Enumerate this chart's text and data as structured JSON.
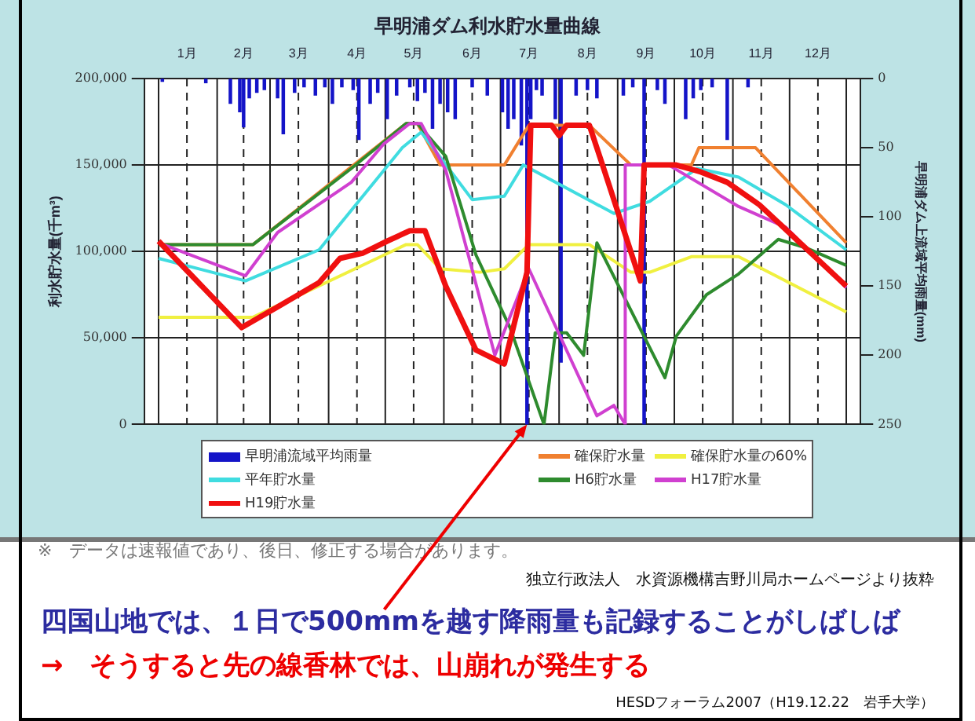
{
  "chart_data": {
    "type": "line",
    "title": "早明浦ダム利水貯水量曲線",
    "ylabel": "利水貯水量(千m³)",
    "y2label": "早明浦ダム上流域平均雨量(mm)",
    "xlim": [
      "--01-01",
      "--12-31"
    ],
    "xticks": [
      {
        "value": "--01-01",
        "label": null
      },
      {
        "value": "--01-16",
        "label": "1月"
      },
      {
        "value": "--02-01",
        "label": null
      },
      {
        "value": "--02-15",
        "label": "2月"
      },
      {
        "value": "--03-01",
        "label": null
      },
      {
        "value": "--03-16",
        "label": "3月"
      },
      {
        "value": "--04-01",
        "label": null
      },
      {
        "value": "--04-16",
        "label": "4月"
      },
      {
        "value": "--05-01",
        "label": null
      },
      {
        "value": "--05-16",
        "label": "5月"
      },
      {
        "value": "--06-01",
        "label": null
      },
      {
        "value": "--06-16",
        "label": "6月"
      },
      {
        "value": "--07-01",
        "label": null
      },
      {
        "value": "--07-16",
        "label": "7月"
      },
      {
        "value": "--08-01",
        "label": null
      },
      {
        "value": "--08-16",
        "label": "8月"
      },
      {
        "value": "--09-01",
        "label": null
      },
      {
        "value": "--09-16",
        "label": "9月"
      },
      {
        "value": "--10-01",
        "label": null
      },
      {
        "value": "--10-16",
        "label": "10月"
      },
      {
        "value": "--11-01",
        "label": null
      },
      {
        "value": "--11-16",
        "label": "11月"
      },
      {
        "value": "--12-01",
        "label": null
      },
      {
        "value": "--12-16",
        "label": "12月"
      },
      {
        "value": "--12-31",
        "label": null
      }
    ],
    "ylim": [
      0,
      200000
    ],
    "yticks": [
      0,
      {
        "value": 50000,
        "label": "50,000"
      },
      {
        "value": 100000,
        "label": "100,000"
      },
      {
        "value": 150000,
        "label": "150,000"
      },
      {
        "value": 200000,
        "label": "200,000"
      }
    ],
    "y2lim": [
      250,
      0
    ],
    "y2ticks": [
      0,
      50,
      100,
      150,
      200,
      250
    ],
    "grid": true,
    "legend": "bottom",
    "marker": "none",
    "line_style": "solid",
    "series": [
      {
        "name": "早明浦流域平均雨量",
        "type": "bar",
        "axis": "y2",
        "color": "#1414c8",
        "x": [
          "--01-03",
          "--01-26",
          "--02-08",
          "--02-13",
          "--02-15",
          "--02-18",
          "--02-22",
          "--02-26",
          "--03-05",
          "--03-08",
          "--03-14",
          "--03-19",
          "--03-25",
          "--03-30",
          "--04-03",
          "--04-08",
          "--04-14",
          "--04-17",
          "--04-23",
          "--04-27",
          "--05-02",
          "--05-07",
          "--05-14",
          "--05-18",
          "--05-22",
          "--05-26",
          "--05-30",
          "--06-03",
          "--06-07",
          "--06-16",
          "--06-24",
          "--07-02",
          "--07-05",
          "--07-08",
          "--07-12",
          "--07-15",
          "--07-17",
          "--07-20",
          "--07-23",
          "--07-30",
          "--08-02",
          "--08-10",
          "--08-16",
          "--08-21",
          "--09-04",
          "--09-09",
          "--09-15",
          "--09-22",
          "--09-26",
          "--10-07",
          "--10-11",
          "--10-15",
          "--10-21",
          "--10-29",
          "--11-09"
        ],
        "values": [
          2,
          3,
          18,
          24,
          35,
          14,
          10,
          8,
          14,
          40,
          10,
          6,
          12,
          6,
          18,
          6,
          8,
          44,
          18,
          10,
          29,
          12,
          6,
          16,
          10,
          36,
          18,
          24,
          29,
          6,
          12,
          24,
          36,
          29,
          48,
          250,
          29,
          8,
          12,
          29,
          205,
          12,
          8,
          14,
          12,
          6,
          250,
          8,
          18,
          29,
          14,
          8,
          6,
          44,
          6
        ]
      },
      {
        "name": "確保貯水量",
        "color": "#f08030",
        "x": [
          "--01-01",
          "--02-20",
          "--05-12",
          "--05-18",
          "--05-30",
          "--07-03",
          "--07-16",
          "--08-17",
          "--09-08",
          "--10-10",
          "--10-14",
          "--11-13",
          "--12-31"
        ],
        "values": [
          104000,
          104000,
          174000,
          174000,
          150000,
          150000,
          173000,
          173000,
          150000,
          150000,
          160000,
          160000,
          105000
        ]
      },
      {
        "name": "確保貯水量の60%",
        "color": "#f0f040",
        "x": [
          "--01-01",
          "--02-20",
          "--05-12",
          "--05-18",
          "--05-30",
          "--06-20",
          "--07-03",
          "--07-16",
          "--08-17",
          "--09-08",
          "--09-18",
          "--10-10",
          "--10-14",
          "--11-04",
          "--12-31"
        ],
        "values": [
          62000,
          62000,
          104000,
          104000,
          90000,
          88000,
          90000,
          104000,
          104000,
          88000,
          88000,
          97000,
          97000,
          97000,
          65000
        ]
      },
      {
        "name": "平年貯水量",
        "color": "#40dce0",
        "x": [
          "--01-01",
          "--02-16",
          "--03-27",
          "--05-10",
          "--05-20",
          "--06-16",
          "--07-03",
          "--07-13",
          "--08-30",
          "--09-18",
          "--10-13",
          "--11-04",
          "--11-29",
          "--12-31"
        ],
        "values": [
          96000,
          83000,
          101000,
          160000,
          169000,
          130000,
          132000,
          150000,
          122000,
          129000,
          148000,
          143000,
          127000,
          101000
        ]
      },
      {
        "name": "H6貯水量",
        "color": "#2e8b2e",
        "x": [
          "--01-01",
          "--02-20",
          "--04-13",
          "--05-12",
          "--05-18",
          "--06-02",
          "--06-18",
          "--07-06",
          "--07-24",
          "--07-30",
          "--08-05",
          "--08-14",
          "--08-21",
          "--09-26",
          "--10-02",
          "--10-18",
          "--11-04",
          "--11-25",
          "--12-10",
          "--12-31"
        ],
        "values": [
          104000,
          104000,
          148000,
          174000,
          174000,
          155000,
          98000,
          56000,
          0,
          53000,
          53000,
          40000,
          105000,
          27000,
          51000,
          75000,
          87000,
          107000,
          102000,
          92000
        ]
      },
      {
        "name": "H17貯水量",
        "color": "#d040d0",
        "x": [
          "--01-01",
          "--02-16",
          "--03-05",
          "--04-13",
          "--04-30",
          "--05-14",
          "--05-20",
          "--06-02",
          "--06-28",
          "--07-16",
          "--08-21",
          "--08-30",
          "--09-05",
          "--09-05",
          "--09-28",
          "--11-04",
          "--11-29",
          "--12-31"
        ],
        "values": [
          105000,
          86000,
          111000,
          140000,
          162000,
          174000,
          174000,
          147000,
          40000,
          90000,
          5000,
          11000,
          0,
          150000,
          150000,
          126000,
          114000,
          79000
        ]
      },
      {
        "name": "H19貯水量",
        "color": "#f01010",
        "x": [
          "--01-01",
          "--02-14",
          "--03-05",
          "--03-27",
          "--04-07",
          "--04-19",
          "--05-02",
          "--05-14",
          "--05-22",
          "--06-02",
          "--06-18",
          "--07-03",
          "--07-15",
          "--07-17",
          "--07-28",
          "--08-01",
          "--08-05",
          "--08-17",
          "--08-24",
          "--09-13",
          "--09-15",
          "--10-02",
          "--10-15",
          "--10-29",
          "--11-15",
          "--12-31"
        ],
        "values": [
          106000,
          56000,
          68000,
          82000,
          96000,
          99000,
          106000,
          112000,
          112000,
          80000,
          43000,
          35000,
          88000,
          173000,
          173000,
          167000,
          173000,
          173000,
          150000,
          83000,
          150000,
          150000,
          146000,
          140000,
          127000,
          80000
        ]
      }
    ],
    "annotations": [
      "※　データは速報値であり、後日、修正する場合があります。",
      "独立行政法人　水資源機構吉野川局ホームページより抜粋",
      {
        "text": "四国山地では、１日で500mmを越す降雨量も記録することがしばしば",
        "x": "--07-15",
        "y": 0
      },
      "→　そうすると先の線香林では、山崩れが発生する",
      "HESDフォーラム2007（H19.12.22　岩手大学）"
    ]
  }
}
